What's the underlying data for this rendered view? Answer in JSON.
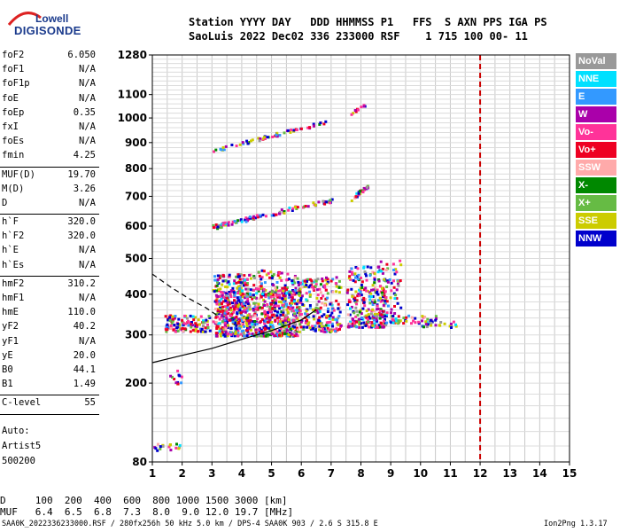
{
  "logo": {
    "line1": "Lowell",
    "line2": "DIGISONDE"
  },
  "header": {
    "line1": "Station YYYY DAY   DDD HHMMSS P1   FFS  S AXN PPS IGA PS",
    "line2": "SaoLuis 2022 Dec02 336 233000 RSF    1 715 100 00- 11"
  },
  "params": [
    {
      "k": "foF2",
      "v": "6.050"
    },
    {
      "k": "foF1",
      "v": "N/A"
    },
    {
      "k": "foF1p",
      "v": "N/A"
    },
    {
      "k": "foE",
      "v": "N/A"
    },
    {
      "k": "foEp",
      "v": "0.35"
    },
    {
      "k": "fxI",
      "v": "N/A"
    },
    {
      "k": "foEs",
      "v": "N/A"
    },
    {
      "k": "fmin",
      "v": "4.25"
    },
    {
      "k": "MUF(D)",
      "v": "19.70"
    },
    {
      "k": "M(D)",
      "v": "3.26"
    },
    {
      "k": "D",
      "v": "N/A"
    },
    {
      "k": "h`F",
      "v": "320.0"
    },
    {
      "k": "h`F2",
      "v": "320.0"
    },
    {
      "k": "h`E",
      "v": "N/A"
    },
    {
      "k": "h`Es",
      "v": "N/A"
    },
    {
      "k": "hmF2",
      "v": "310.2"
    },
    {
      "k": "hmF1",
      "v": "N/A"
    },
    {
      "k": "hmE",
      "v": "110.0"
    },
    {
      "k": "yF2",
      "v": "40.2"
    },
    {
      "k": "yF1",
      "v": "N/A"
    },
    {
      "k": "yE",
      "v": "20.0"
    },
    {
      "k": "B0",
      "v": "44.1"
    },
    {
      "k": "B1",
      "v": "1.49"
    },
    {
      "k": "C-level",
      "v": "55"
    }
  ],
  "auto": {
    "l1": "Auto:",
    "l2": "Artist5",
    "l3": "500200"
  },
  "legend": [
    {
      "label": "NoVal",
      "color": "#999999"
    },
    {
      "label": "NNE",
      "color": "#00e0ff"
    },
    {
      "label": "E",
      "color": "#3399ff"
    },
    {
      "label": "W",
      "color": "#aa00aa"
    },
    {
      "label": "Vo-",
      "color": "#ff3399"
    },
    {
      "label": "Vo+",
      "color": "#ee0022"
    },
    {
      "label": "SSW",
      "color": "#ffaaaa"
    },
    {
      "label": "X-",
      "color": "#008800"
    },
    {
      "label": "X+",
      "color": "#66bb44"
    },
    {
      "label": "SSE",
      "color": "#cccc00"
    },
    {
      "label": "NNW",
      "color": "#0000cc"
    }
  ],
  "bottom": {
    "d_line": "D     100  200  400  600  800 1000 1500 3000 [km]",
    "muf_line": "MUF   6.4  6.5  6.8  7.3  8.0  9.0 12.0 19.7 [MHz]"
  },
  "footer": {
    "left": "SAA0K_2022336233000.RSF / 280fx256h 50 kHz 5.0 km / DPS-4 SAA0K 903 / 2.6 S 315.8 E",
    "right": "Ion2Png 1.3.17"
  },
  "chart_data": {
    "type": "scatter",
    "x_ticks": [
      "1",
      "2",
      "3",
      "4",
      "5",
      "6",
      "7",
      "8",
      "9",
      "10",
      "11",
      "12",
      "13",
      "14",
      "15"
    ],
    "y_ticks": [
      "80",
      "200",
      "300",
      "400",
      "500",
      "600",
      "700",
      "800",
      "900",
      "1000",
      "1100",
      "1280"
    ],
    "xlim": [
      1,
      15
    ],
    "ylim": [
      80,
      1280
    ],
    "y_scale": "sqrt",
    "grid": true,
    "marker_freq_mhz": 12,
    "marker_color": "#cc0000",
    "clusters": [
      {
        "x": [
          3.1,
          5.9
        ],
        "y": [
          300,
          420
        ],
        "n": 700
      },
      {
        "x": [
          3.0,
          4.2
        ],
        "y": [
          330,
          460
        ],
        "n": 180
      },
      {
        "x": [
          5.9,
          7.3
        ],
        "y": [
          310,
          450
        ],
        "n": 220
      },
      {
        "x": [
          7.5,
          8.8
        ],
        "y": [
          320,
          480
        ],
        "n": 260
      },
      {
        "x": [
          8.6,
          9.3
        ],
        "y": [
          330,
          500
        ],
        "n": 80
      },
      {
        "x": [
          4.2,
          6.0
        ],
        "y": [
          400,
          470
        ],
        "n": 110
      },
      {
        "x": [
          1.4,
          2.9
        ],
        "y": [
          310,
          350
        ],
        "n": 120
      },
      {
        "x": [
          9.0,
          10.5
        ],
        "y": [
          330,
          350
        ],
        "n": 40
      },
      {
        "x": [
          10.0,
          11.2
        ],
        "y": [
          320,
          335
        ],
        "n": 20
      },
      {
        "x": [
          1.5,
          2.0
        ],
        "y": [
          200,
          230
        ],
        "n": 12
      },
      {
        "x": [
          1.0,
          1.9
        ],
        "y": [
          95,
          105
        ],
        "n": 18
      }
    ],
    "traces": [
      {
        "x": [
          3.0,
          7.0
        ],
        "y": [
          600,
          690
        ],
        "n": 100
      },
      {
        "x": [
          7.6,
          8.2
        ],
        "y": [
          690,
          740
        ],
        "n": 30
      },
      {
        "x": [
          3.0,
          6.9
        ],
        "y": [
          870,
          990
        ],
        "n": 60
      },
      {
        "x": [
          7.6,
          8.1
        ],
        "y": [
          1020,
          1060
        ],
        "n": 10
      }
    ],
    "curves": [
      {
        "style": "solid",
        "color": "#000000",
        "x": [
          1.0,
          2.0,
          3.0,
          4.0,
          5.0,
          6.0,
          6.5
        ],
        "y": [
          240,
          255,
          270,
          290,
          310,
          335,
          360
        ]
      },
      {
        "style": "dashed",
        "color": "#000000",
        "x": [
          1.0,
          1.6,
          2.2,
          2.8,
          3.2
        ],
        "y": [
          455,
          420,
          390,
          365,
          345
        ]
      }
    ]
  }
}
